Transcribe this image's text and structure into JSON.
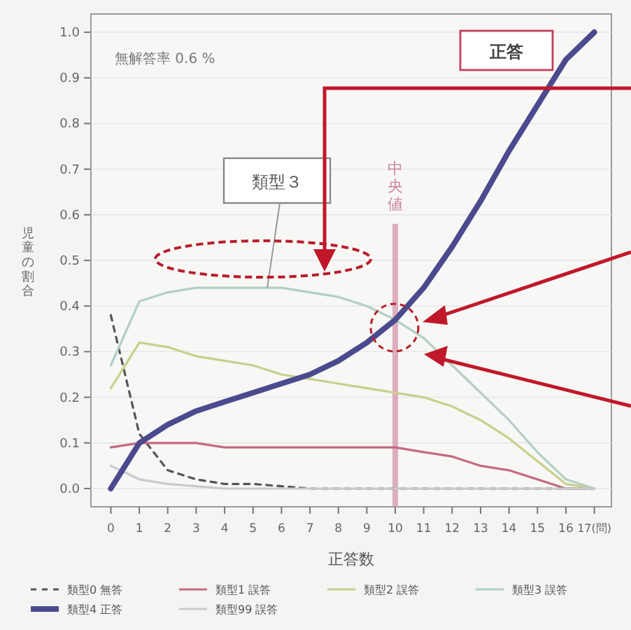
{
  "chart_data": {
    "type": "line",
    "xlabel": "正答数",
    "ylabel": "児童の割合",
    "x": [
      0,
      1,
      2,
      3,
      4,
      5,
      6,
      7,
      8,
      9,
      10,
      11,
      12,
      13,
      14,
      15,
      16,
      17
    ],
    "xlim": [
      -0.7,
      17.6
    ],
    "ylim": [
      -0.04,
      1.04
    ],
    "xticks": [
      0,
      1,
      2,
      3,
      4,
      5,
      6,
      7,
      8,
      9,
      10,
      11,
      12,
      13,
      14,
      15,
      16,
      {
        "value": 17,
        "label": "17(問)"
      }
    ],
    "yticks": [
      {
        "value": 0,
        "label": "0.0"
      },
      0.1,
      0.2,
      0.3,
      0.4,
      0.5,
      0.6,
      0.7,
      0.8,
      0.9,
      {
        "value": 1,
        "label": "1.0"
      }
    ],
    "grid": "y",
    "legend": "bottom",
    "series": [
      {
        "name": "類型0 無答",
        "color": "#555555",
        "line_style": "dashed",
        "values": [
          0.38,
          0.12,
          0.04,
          0.02,
          0.01,
          0.01,
          0.005,
          0,
          0,
          0,
          0,
          0,
          0,
          0,
          0,
          0,
          0,
          0
        ]
      },
      {
        "name": "類型1 誤答",
        "color": "#c46a82",
        "values": [
          0.09,
          0.1,
          0.1,
          0.1,
          0.09,
          0.09,
          0.09,
          0.09,
          0.09,
          0.09,
          0.09,
          0.08,
          0.07,
          0.05,
          0.04,
          0.02,
          0,
          0
        ]
      },
      {
        "name": "類型2 誤答",
        "color": "#c9cf8c",
        "values": [
          0.22,
          0.32,
          0.31,
          0.29,
          0.28,
          0.27,
          0.25,
          0.24,
          0.23,
          0.22,
          0.21,
          0.2,
          0.18,
          0.15,
          0.11,
          0.06,
          0.01,
          0
        ]
      },
      {
        "name": "類型3 誤答",
        "color": "#b3cfc3",
        "values": [
          0.27,
          0.41,
          0.43,
          0.44,
          0.44,
          0.44,
          0.44,
          0.43,
          0.42,
          0.4,
          0.37,
          0.33,
          0.27,
          0.21,
          0.15,
          0.08,
          0.02,
          0
        ]
      },
      {
        "name": "類型4 正答",
        "color": "#4b4a8f",
        "values": [
          0,
          0.1,
          0.14,
          0.17,
          0.19,
          0.21,
          0.23,
          0.25,
          0.28,
          0.32,
          0.37,
          0.44,
          0.53,
          0.63,
          0.74,
          0.84,
          0.94,
          1.0
        ]
      },
      {
        "name": "類型99 誤答",
        "color": "#c8cbcb",
        "values": [
          0.05,
          0.02,
          0.01,
          0.005,
          0,
          0,
          0,
          0,
          0,
          0,
          0,
          0,
          0,
          0,
          0,
          0,
          0,
          0
        ]
      }
    ],
    "ref_lines": [
      {
        "axis": "x",
        "value": 10,
        "label": "中央値",
        "color": "#d79cb0"
      }
    ],
    "annotations": [
      "無解答率 0.6 %",
      {
        "text": "類型３",
        "x": 5.5,
        "y": 0.44
      },
      "正答"
    ]
  }
}
